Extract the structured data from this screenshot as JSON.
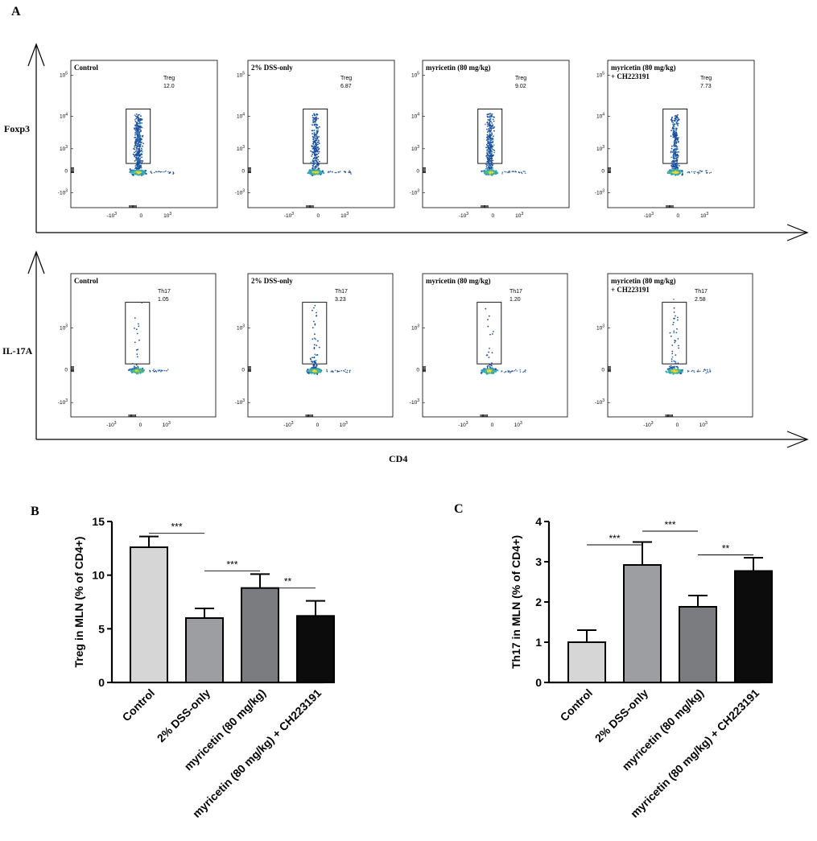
{
  "panel_labels": {
    "a": "A",
    "b": "B",
    "c": "C"
  },
  "flow": {
    "treg_row": {
      "y_axis_label": "Foxp3",
      "panels": [
        {
          "label_lines": [
            "Control"
          ],
          "gate_label": "Treg",
          "gate_value": "12.0"
        },
        {
          "label_lines": [
            "2% DSS-only"
          ],
          "gate_label": "Treg",
          "gate_value": "6.87"
        },
        {
          "label_lines": [
            "myricetin (80 mg/kg)"
          ],
          "gate_label": "Treg",
          "gate_value": "9.02"
        },
        {
          "label_lines": [
            "myricetin (80 mg/kg)",
            "+ CH223191"
          ],
          "gate_label": "Treg",
          "gate_value": "7.73"
        }
      ],
      "y_ticks": [
        "10^5",
        "10^4",
        "10^3",
        "0",
        "-10^3"
      ],
      "x_ticks": [
        "-10^3",
        "0",
        "10^3"
      ]
    },
    "th17_row": {
      "y_axis_label": "IL-17A",
      "panels": [
        {
          "label_lines": [
            "Control"
          ],
          "gate_label": "Th17",
          "gate_value": "1.05"
        },
        {
          "label_lines": [
            "2% DSS-only"
          ],
          "gate_label": "Th17",
          "gate_value": "3.23"
        },
        {
          "label_lines": [
            "myricetin (80 mg/kg)"
          ],
          "gate_label": "Th17",
          "gate_value": "1.20"
        },
        {
          "label_lines": [
            "myricetin (80 mg/kg)",
            "+ CH223191"
          ],
          "gate_label": "Th17",
          "gate_value": "2.58"
        }
      ],
      "y_ticks": [
        "10^3",
        "0",
        "-10^3"
      ],
      "x_ticks": [
        "-10^3",
        "0",
        "10^3"
      ]
    },
    "x_axis_label": "CD4"
  },
  "chart_data": [
    {
      "type": "bar",
      "panel": "B",
      "title": "",
      "ylabel": "Treg in MLN (% of CD4+)",
      "categories": [
        "Control",
        "2% DSS-only",
        "myricetin (80 mg/kg)",
        "myricetin (80 mg/kg) + CH223191"
      ],
      "values": [
        12.6,
        6.0,
        8.8,
        6.2
      ],
      "errors": [
        1.0,
        0.9,
        1.3,
        1.4
      ],
      "bar_colors": [
        "#d6d6d6",
        "#9c9ea2",
        "#7b7c7f",
        "#0c0c0c"
      ],
      "ylim": [
        0,
        15
      ],
      "yticks": [
        0,
        5,
        10,
        15
      ],
      "significance": [
        {
          "from": 0,
          "to": 1,
          "label": "***",
          "y": 13.9
        },
        {
          "from": 1,
          "to": 2,
          "label": "***",
          "y": 10.4
        },
        {
          "from": 2,
          "to": 3,
          "label": "**",
          "y": 8.8
        }
      ]
    },
    {
      "type": "bar",
      "panel": "C",
      "title": "",
      "ylabel": "Th17 in MLN (% of CD4+)",
      "categories": [
        "Control",
        "2% DSS-only",
        "myricetin (80 mg/kg)",
        "myricetin (80 mg/kg) + CH223191"
      ],
      "values": [
        1.0,
        2.92,
        1.88,
        2.77
      ],
      "errors": [
        0.3,
        0.57,
        0.28,
        0.33
      ],
      "bar_colors": [
        "#d6d6d6",
        "#9c9ea2",
        "#7b7c7f",
        "#0c0c0c"
      ],
      "ylim": [
        0,
        4
      ],
      "yticks": [
        0,
        1,
        2,
        3,
        4
      ],
      "significance": [
        {
          "from": 0,
          "to": 1,
          "label": "***",
          "y": 3.42
        },
        {
          "from": 1,
          "to": 2,
          "label": "***",
          "y": 3.76
        },
        {
          "from": 2,
          "to": 3,
          "label": "**",
          "y": 3.17
        }
      ]
    }
  ]
}
